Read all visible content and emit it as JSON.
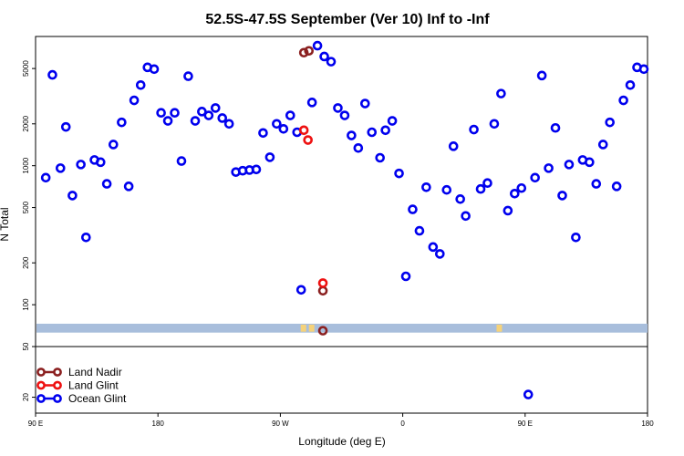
{
  "chart_data": {
    "type": "scatter",
    "title": "52.5S-47.5S September (Ver 10)   Inf to -Inf",
    "xlabel": "Longitude (deg E)",
    "ylabel": "N Total",
    "y_scale": "log",
    "grid": false,
    "legend_position": "bottom-left",
    "x_ticks": [
      {
        "value": 0,
        "label": "90 E"
      },
      {
        "value": 90,
        "label": "180"
      },
      {
        "value": 180,
        "label": "90 W"
      },
      {
        "value": 270,
        "label": "0"
      },
      {
        "value": 360,
        "label": "90 E"
      },
      {
        "value": 450,
        "label": "180"
      }
    ],
    "xlim": [
      0,
      450
    ],
    "upper_panel": {
      "ylim": [
        50,
        8500
      ],
      "y_ticks": [
        {
          "value": 100,
          "label": "100"
        },
        {
          "value": 200,
          "label": "200"
        },
        {
          "value": 500,
          "label": "500"
        },
        {
          "value": 1000,
          "label": "1000"
        },
        {
          "value": 2000,
          "label": "2000"
        },
        {
          "value": 5000,
          "label": "5000"
        }
      ]
    },
    "lower_panel": {
      "ylim": [
        15,
        50
      ],
      "y_ticks": [
        {
          "value": 20,
          "label": "20"
        },
        {
          "value": 50,
          "label": "50"
        }
      ]
    },
    "coverage_band": {
      "color": "#a8bedc",
      "y_range": [
        63,
        73
      ],
      "highlight_color": "#f5d27a",
      "highlight_x": [
        197,
        203,
        341
      ]
    },
    "series": [
      {
        "name": "Land Nadir",
        "color": "#8b2020",
        "values": [
          {
            "x": 197.3,
            "y": 6500
          },
          {
            "x": 201.0,
            "y": 6700
          },
          {
            "x": 211.3,
            "y": 126
          },
          {
            "x": 211.3,
            "y": 65
          }
        ]
      },
      {
        "name": "Land Glint",
        "color": "#ee1111",
        "values": [
          {
            "x": 197.3,
            "y": 1800
          },
          {
            "x": 200.3,
            "y": 1530
          },
          {
            "x": 211.3,
            "y": 143
          }
        ]
      },
      {
        "name": "Ocean Glint",
        "color": "#0000ee",
        "values": [
          {
            "x": 7.5,
            "y": 820
          },
          {
            "x": 12.4,
            "y": 4500
          },
          {
            "x": 18.3,
            "y": 960
          },
          {
            "x": 22.3,
            "y": 1900
          },
          {
            "x": 27.1,
            "y": 610
          },
          {
            "x": 33.3,
            "y": 1020
          },
          {
            "x": 37.1,
            "y": 305
          },
          {
            "x": 43.3,
            "y": 1100
          },
          {
            "x": 47.8,
            "y": 1060
          },
          {
            "x": 52.4,
            "y": 740
          },
          {
            "x": 57.2,
            "y": 1420
          },
          {
            "x": 63.3,
            "y": 2050
          },
          {
            "x": 68.5,
            "y": 710
          },
          {
            "x": 72.5,
            "y": 2950
          },
          {
            "x": 77.3,
            "y": 3800
          },
          {
            "x": 82.3,
            "y": 5100
          },
          {
            "x": 87.2,
            "y": 4950
          },
          {
            "x": 92.3,
            "y": 2400
          },
          {
            "x": 97.3,
            "y": 2100
          },
          {
            "x": 102.3,
            "y": 2400
          },
          {
            "x": 107.3,
            "y": 1080
          },
          {
            "x": 112.3,
            "y": 4400
          },
          {
            "x": 117.4,
            "y": 2100
          },
          {
            "x": 122.3,
            "y": 2450
          },
          {
            "x": 127.3,
            "y": 2300
          },
          {
            "x": 132.3,
            "y": 2600
          },
          {
            "x": 137.3,
            "y": 2200
          },
          {
            "x": 142.3,
            "y": 2000
          },
          {
            "x": 147.3,
            "y": 900
          },
          {
            "x": 152.3,
            "y": 920
          },
          {
            "x": 157.3,
            "y": 930
          },
          {
            "x": 162.3,
            "y": 940
          },
          {
            "x": 167.3,
            "y": 1720
          },
          {
            "x": 172.3,
            "y": 1150
          },
          {
            "x": 177.3,
            "y": 2000
          },
          {
            "x": 182.3,
            "y": 1840
          },
          {
            "x": 187.3,
            "y": 2300
          },
          {
            "x": 192.3,
            "y": 1740
          },
          {
            "x": 195.3,
            "y": 128
          },
          {
            "x": 203.3,
            "y": 2850
          },
          {
            "x": 207.3,
            "y": 7300
          },
          {
            "x": 212.3,
            "y": 6100
          },
          {
            "x": 217.3,
            "y": 5600
          },
          {
            "x": 222.3,
            "y": 2600
          },
          {
            "x": 227.3,
            "y": 2300
          },
          {
            "x": 232.3,
            "y": 1650
          },
          {
            "x": 237.3,
            "y": 1340
          },
          {
            "x": 242.3,
            "y": 2800
          },
          {
            "x": 247.3,
            "y": 1740
          },
          {
            "x": 253.3,
            "y": 1140
          },
          {
            "x": 257.3,
            "y": 1800
          },
          {
            "x": 262.3,
            "y": 2100
          },
          {
            "x": 267.3,
            "y": 880
          },
          {
            "x": 272.3,
            "y": 160
          },
          {
            "x": 277.3,
            "y": 485
          },
          {
            "x": 282.3,
            "y": 340
          },
          {
            "x": 287.3,
            "y": 700
          },
          {
            "x": 292.3,
            "y": 260
          },
          {
            "x": 297.3,
            "y": 232
          },
          {
            "x": 302.3,
            "y": 670
          },
          {
            "x": 307.3,
            "y": 1380
          },
          {
            "x": 312.3,
            "y": 575
          },
          {
            "x": 316.3,
            "y": 435
          },
          {
            "x": 322.3,
            "y": 1820
          },
          {
            "x": 327.3,
            "y": 680
          },
          {
            "x": 332.3,
            "y": 750
          },
          {
            "x": 337.3,
            "y": 2000
          },
          {
            "x": 342.3,
            "y": 3300
          },
          {
            "x": 347.3,
            "y": 475
          },
          {
            "x": 352.3,
            "y": 630
          },
          {
            "x": 357.3,
            "y": 690
          },
          {
            "x": 362.3,
            "y": 21
          },
          {
            "x": 367.3,
            "y": 820
          },
          {
            "x": 372.3,
            "y": 4450
          },
          {
            "x": 377.3,
            "y": 960
          },
          {
            "x": 382.3,
            "y": 1870
          },
          {
            "x": 387.3,
            "y": 610
          },
          {
            "x": 392.3,
            "y": 1020
          },
          {
            "x": 397.3,
            "y": 305
          },
          {
            "x": 402.3,
            "y": 1100
          },
          {
            "x": 407.3,
            "y": 1060
          },
          {
            "x": 412.3,
            "y": 740
          },
          {
            "x": 417.3,
            "y": 1420
          },
          {
            "x": 422.3,
            "y": 2050
          },
          {
            "x": 427.3,
            "y": 710
          },
          {
            "x": 432.3,
            "y": 2950
          },
          {
            "x": 437.3,
            "y": 3800
          },
          {
            "x": 442.3,
            "y": 5100
          },
          {
            "x": 447.3,
            "y": 4950
          }
        ]
      }
    ]
  }
}
